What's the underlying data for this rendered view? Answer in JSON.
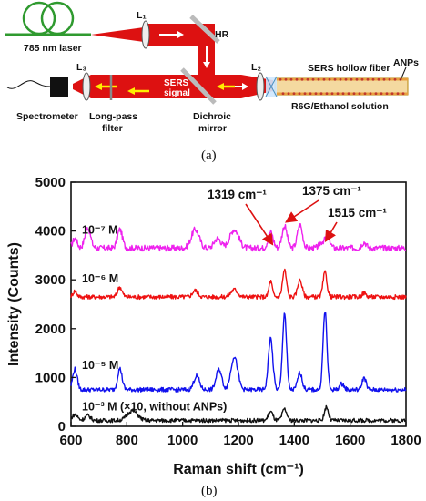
{
  "setup": {
    "laser_label": "785 nm laser",
    "lens1": "L₁",
    "lens2": "L₂",
    "lens3": "L₃",
    "hr": "HR",
    "sers_signal_line1": "SERS",
    "sers_signal_line2": "signal",
    "spectrometer": "Spectrometer",
    "filter_line1": "Long-pass",
    "filter_line2": "filter",
    "dichroic_line1": "Dichroic",
    "dichroic_line2": "mirror",
    "fiber": "SERS hollow fiber",
    "solution": "R6G/Ethanol solution",
    "anps": "ANPs",
    "caption": "(a)"
  },
  "chart_data": {
    "type": "line",
    "caption": "(b)",
    "xlabel": "Raman shift (cm⁻¹)",
    "ylabel": "Intensity (Counts)",
    "xlim": [
      600,
      1800
    ],
    "ylim": [
      0,
      5000
    ],
    "xticks": [
      600,
      800,
      1000,
      1200,
      1400,
      1600,
      1800
    ],
    "yticks": [
      0,
      1000,
      2000,
      3000,
      4000,
      5000
    ],
    "grid": false,
    "series": [
      {
        "name": "10⁻⁷ M",
        "color": "#ee22ee",
        "baseline": 3650,
        "noise": 60,
        "peaks": [
          [
            614,
            200,
            8
          ],
          [
            660,
            420,
            10
          ],
          [
            775,
            380,
            9
          ],
          [
            1045,
            380,
            14
          ],
          [
            1125,
            200,
            12
          ],
          [
            1185,
            380,
            16
          ],
          [
            1315,
            330,
            9
          ],
          [
            1365,
            450,
            9
          ],
          [
            1420,
            480,
            9
          ],
          [
            1500,
            120,
            10
          ],
          [
            1520,
            250,
            8
          ],
          [
            1650,
            120,
            8
          ]
        ]
      },
      {
        "name": "10⁻⁶ M",
        "color": "#ee1111",
        "baseline": 2650,
        "noise": 45,
        "peaks": [
          [
            614,
            120,
            7
          ],
          [
            775,
            200,
            8
          ],
          [
            1045,
            130,
            10
          ],
          [
            1185,
            150,
            12
          ],
          [
            1315,
            320,
            6
          ],
          [
            1365,
            550,
            7
          ],
          [
            1420,
            350,
            8
          ],
          [
            1510,
            500,
            7
          ],
          [
            1650,
            80,
            7
          ]
        ]
      },
      {
        "name": "10⁻⁵ M",
        "color": "#1111ee",
        "baseline": 750,
        "noise": 45,
        "peaks": [
          [
            614,
            420,
            8
          ],
          [
            775,
            430,
            8
          ],
          [
            1050,
            280,
            10
          ],
          [
            1130,
            420,
            10
          ],
          [
            1185,
            680,
            12
          ],
          [
            1315,
            1050,
            8
          ],
          [
            1365,
            1580,
            7
          ],
          [
            1420,
            350,
            8
          ],
          [
            1510,
            1600,
            7
          ],
          [
            1570,
            120,
            8
          ],
          [
            1650,
            250,
            7
          ]
        ]
      },
      {
        "name": "10⁻³ M (×10, without ANPs)",
        "color": "#111111",
        "baseline": 120,
        "noise": 40,
        "peaks": [
          [
            614,
            120,
            10
          ],
          [
            660,
            100,
            10
          ],
          [
            820,
            200,
            18
          ],
          [
            1315,
            180,
            8
          ],
          [
            1365,
            230,
            8
          ],
          [
            1515,
            280,
            7
          ]
        ]
      }
    ],
    "annotations": [
      {
        "text": "1319 cm⁻¹",
        "x": 1319,
        "y": 3750
      },
      {
        "text": "1375 cm⁻¹",
        "x": 1375,
        "y": 4200
      },
      {
        "text": "1515 cm⁻¹",
        "x": 1515,
        "y": 3820
      }
    ]
  }
}
